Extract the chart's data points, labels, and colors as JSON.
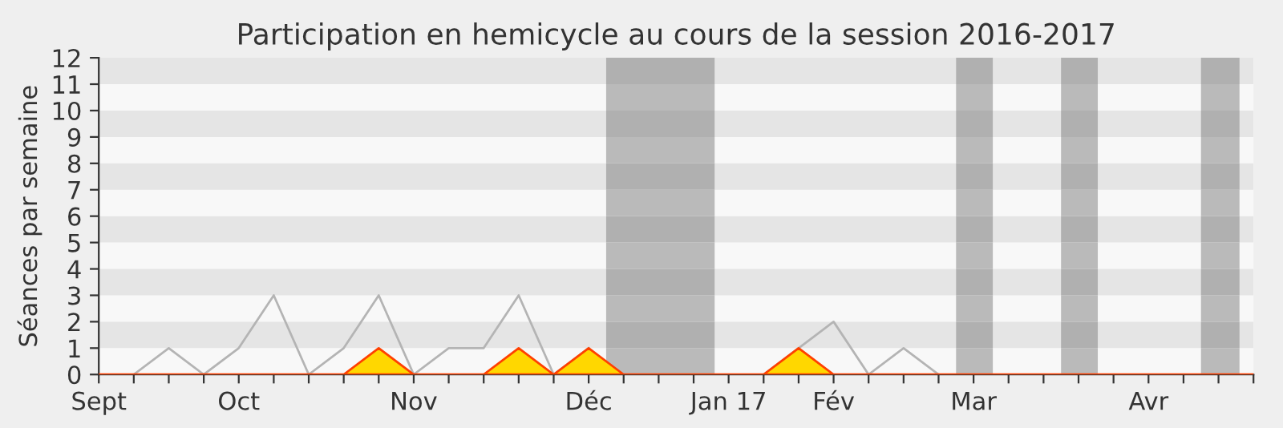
{
  "chart_data": {
    "type": "line",
    "title": "Participation en hemicycle au cours de la session 2016-2017",
    "ylabel": "Séances par semaine",
    "categories": [
      "Sept",
      null,
      null,
      null,
      "Oct",
      null,
      null,
      null,
      null,
      "Nov",
      null,
      null,
      null,
      null,
      "Déc",
      null,
      null,
      null,
      "Jan 17",
      null,
      null,
      "Fév",
      null,
      null,
      null,
      "Mar",
      null,
      null,
      null,
      null,
      "Avr",
      null,
      null,
      null
    ],
    "series": [
      {
        "color": "#b4b4b4",
        "values": [
          null,
          0,
          1,
          0,
          1,
          3,
          0,
          1,
          3,
          0,
          1,
          1,
          3,
          0,
          1,
          null,
          null,
          null,
          null,
          0,
          1,
          2,
          0,
          1,
          0,
          null,
          null,
          null,
          null,
          null,
          null,
          null,
          null,
          null
        ]
      },
      {
        "type": "area",
        "color": "#ffd700",
        "values": [
          0,
          0,
          0,
          0,
          0,
          0,
          0,
          0,
          1,
          0,
          0,
          0,
          1,
          0,
          1,
          0,
          0,
          0,
          0,
          0,
          1,
          0,
          0,
          0,
          0,
          0,
          0,
          0,
          0,
          0,
          0,
          0,
          0,
          0
        ]
      }
    ],
    "ylim": [
      0,
      12
    ],
    "yticks": [
      0,
      1,
      2,
      3,
      4,
      5,
      6,
      7,
      8,
      9,
      10,
      11,
      12
    ],
    "legend": false
  }
}
